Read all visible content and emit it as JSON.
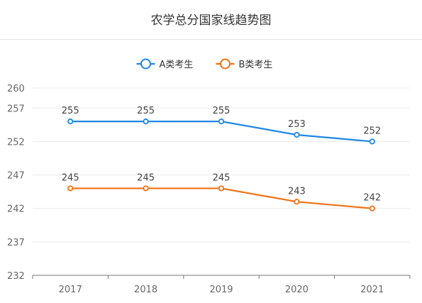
{
  "chart_data": {
    "type": "line",
    "title": "农学总分国家线趋势图",
    "categories": [
      "2017",
      "2018",
      "2019",
      "2020",
      "2021"
    ],
    "series": [
      {
        "name": "A类考生",
        "values": [
          255,
          255,
          255,
          253,
          252
        ],
        "color": "#1e88e5"
      },
      {
        "name": "B类考生",
        "values": [
          245,
          245,
          245,
          243,
          242
        ],
        "color": "#f07214"
      }
    ],
    "yticks": [
      232,
      237,
      242,
      247,
      252,
      257,
      260
    ],
    "ylim": [
      232,
      260
    ],
    "legend_position": "top-center",
    "grid": true
  }
}
